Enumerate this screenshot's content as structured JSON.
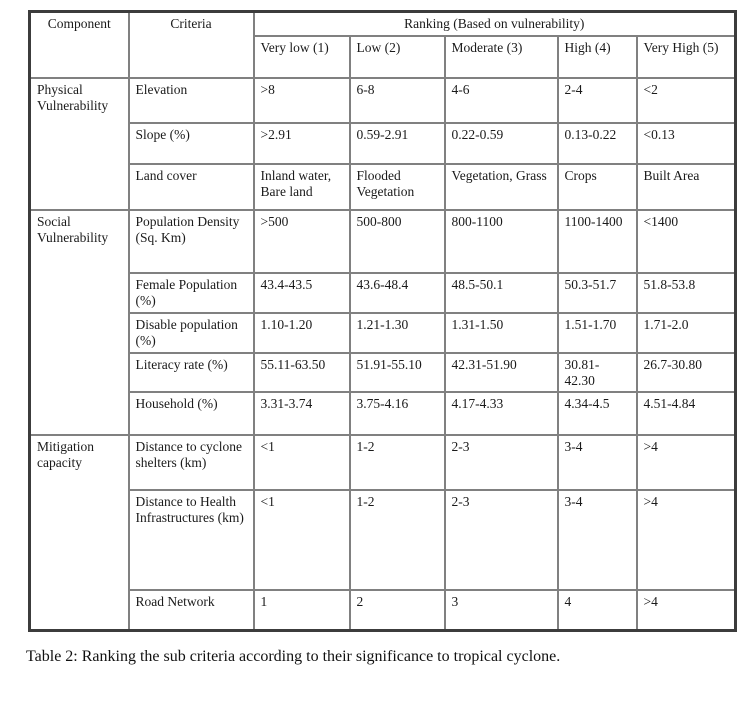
{
  "header": {
    "component": "Component",
    "criteria": "Criteria",
    "ranking": "Ranking (Based on vulnerability)",
    "rank_levels": [
      "Very low (1)",
      "Low (2)",
      "Moderate (3)",
      "High (4)",
      "Very High (5)"
    ]
  },
  "groups": [
    {
      "component": "Physical Vulnerability",
      "rows": [
        {
          "criteria": "Elevation",
          "values": [
            ">8",
            "6-8",
            "4-6",
            "2-4",
            "<2"
          ]
        },
        {
          "criteria": "Slope (%)",
          "values": [
            ">2.91",
            "0.59-2.91",
            "0.22-0.59",
            "0.13-0.22",
            "<0.13"
          ]
        },
        {
          "criteria": "Land cover",
          "values": [
            "Inland water, Bare land",
            "Flooded Vegetation",
            "Vegetation, Grass",
            "Crops",
            "Built Area"
          ]
        }
      ]
    },
    {
      "component": "Social Vulnerability",
      "rows": [
        {
          "criteria": "Population Density (Sq. Km)",
          "values": [
            ">500",
            "500-800",
            "800-1100",
            "1100-1400",
            "<1400"
          ]
        },
        {
          "criteria": "Female Population (%)",
          "values": [
            "43.4-43.5",
            "43.6-48.4",
            "48.5-50.1",
            "50.3-51.7",
            "51.8-53.8"
          ]
        },
        {
          "criteria": "Disable population (%)",
          "values": [
            "1.10-1.20",
            "1.21-1.30",
            "1.31-1.50",
            "1.51-1.70",
            "1.71-2.0"
          ]
        },
        {
          "criteria": "Literacy rate (%)",
          "values": [
            "55.11-63.50",
            "51.91-55.10",
            "42.31-51.90",
            "30.81-42.30",
            "26.7-30.80"
          ]
        },
        {
          "criteria": "Household (%)",
          "values": [
            "3.31-3.74",
            "3.75-4.16",
            "4.17-4.33",
            "4.34-4.5",
            "4.51-4.84"
          ]
        }
      ]
    },
    {
      "component": "Mitigation capacity",
      "rows": [
        {
          "criteria": "Distance to cyclone shelters (km)",
          "values": [
            "<1",
            "1-2",
            "2-3",
            "3-4",
            ">4"
          ]
        },
        {
          "criteria": "Distance to Health Infrastructures (km)",
          "values": [
            "<1",
            "1-2",
            "2-3",
            "3-4",
            ">4"
          ]
        },
        {
          "criteria": "Road Network",
          "values": [
            "1",
            "2",
            "3",
            "4",
            ">4"
          ]
        }
      ]
    }
  ],
  "caption": "Table 2: Ranking the sub criteria according to their significance to tropical cyclone."
}
